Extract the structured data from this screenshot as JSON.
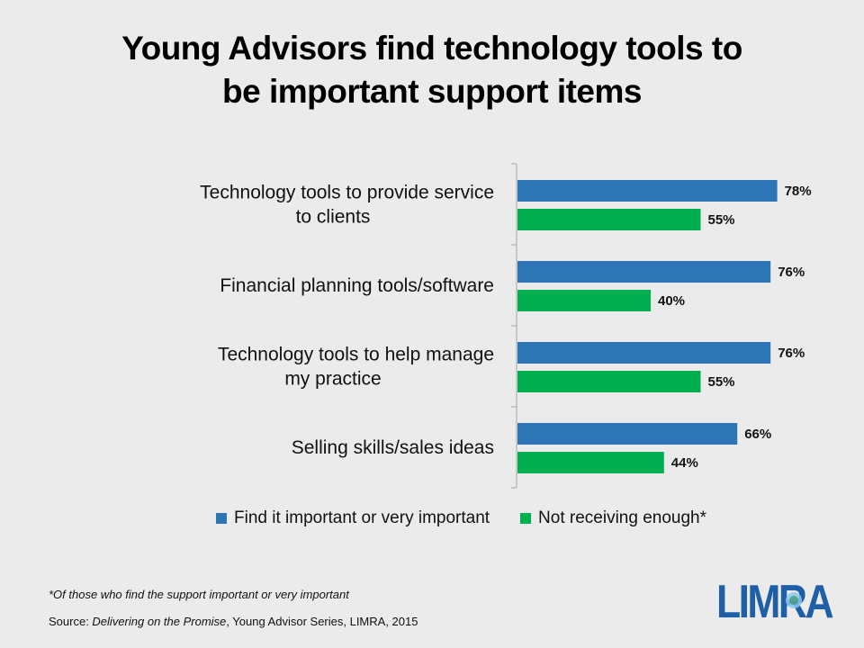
{
  "title_lines": [
    "Young Advisors find technology tools to",
    "be important support items"
  ],
  "chart_data": {
    "type": "bar",
    "orientation": "horizontal",
    "categories": [
      [
        "Technology tools to provide service",
        "to clients"
      ],
      [
        "Financial planning tools/software"
      ],
      [
        "Technology tools to help manage",
        "my practice"
      ],
      [
        "Selling skills/sales ideas"
      ]
    ],
    "series": [
      {
        "name": "Find it important or very important",
        "color": "#2e75b6",
        "values": [
          78,
          76,
          76,
          66
        ],
        "labels": [
          "78%",
          "76%",
          "76%",
          "66%"
        ]
      },
      {
        "name": "Not receiving enough*",
        "color": "#00b050",
        "values": [
          55,
          40,
          55,
          44
        ],
        "labels": [
          "55%",
          "40%",
          "55%",
          "44%"
        ]
      }
    ],
    "xlim": [
      0,
      100
    ],
    "grid": false,
    "legend_position": "bottom"
  },
  "footnote": "*Of those who find the support important or very important",
  "source": {
    "prefix": "Source: ",
    "title": "Delivering on the Promise",
    "suffix": ", Young Advisor Series, LIMRA,  2015"
  },
  "logo": {
    "text": "LIMRA",
    "color": "#1f5fa8"
  }
}
